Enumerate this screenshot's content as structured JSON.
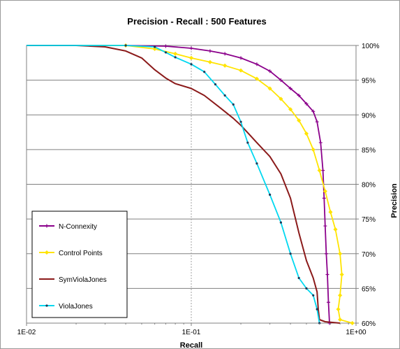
{
  "chart_data": {
    "type": "line",
    "title": "Precision - Recall : 500 Features",
    "xlabel": "Recall",
    "ylabel": "Precision",
    "x_scale": "log",
    "xlim": [
      0.01,
      1.0
    ],
    "ylim": [
      60,
      100
    ],
    "x_ticks": [
      {
        "value": 0.01,
        "label": "1E-02"
      },
      {
        "value": 0.1,
        "label": "1E-01"
      },
      {
        "value": 1.0,
        "label": "1E+00"
      }
    ],
    "y_ticks": [
      {
        "value": 100,
        "label": "100%"
      },
      {
        "value": 95,
        "label": "95%"
      },
      {
        "value": 90,
        "label": "90%"
      },
      {
        "value": 85,
        "label": "85%"
      },
      {
        "value": 80,
        "label": "80%"
      },
      {
        "value": 75,
        "label": "75%"
      },
      {
        "value": 70,
        "label": "70%"
      },
      {
        "value": 65,
        "label": "65%"
      },
      {
        "value": 60,
        "label": "60%"
      }
    ],
    "grid": true,
    "legend_position": "bottom-left",
    "series": [
      {
        "name": "N-Connexity",
        "color": "#8B008B",
        "marker": "plus",
        "points": [
          [
            0.01,
            100
          ],
          [
            0.04,
            100
          ],
          [
            0.07,
            99.9
          ],
          [
            0.1,
            99.6
          ],
          [
            0.13,
            99.2
          ],
          [
            0.16,
            98.8
          ],
          [
            0.2,
            98.2
          ],
          [
            0.25,
            97.3
          ],
          [
            0.3,
            96.3
          ],
          [
            0.35,
            95.0
          ],
          [
            0.4,
            93.8
          ],
          [
            0.45,
            92.8
          ],
          [
            0.5,
            91.6
          ],
          [
            0.55,
            90.5
          ],
          [
            0.58,
            89.0
          ],
          [
            0.61,
            86.0
          ],
          [
            0.63,
            82.0
          ],
          [
            0.64,
            78.0
          ],
          [
            0.65,
            74.0
          ],
          [
            0.66,
            70.0
          ],
          [
            0.67,
            67.0
          ],
          [
            0.68,
            63.0
          ],
          [
            0.69,
            60.0
          ]
        ]
      },
      {
        "name": "Control Points",
        "color": "#FFE400",
        "marker": "diamond",
        "points": [
          [
            0.01,
            100
          ],
          [
            0.04,
            100
          ],
          [
            0.06,
            99.5
          ],
          [
            0.08,
            98.8
          ],
          [
            0.1,
            98.2
          ],
          [
            0.13,
            97.6
          ],
          [
            0.16,
            97.1
          ],
          [
            0.2,
            96.4
          ],
          [
            0.25,
            95.2
          ],
          [
            0.3,
            93.8
          ],
          [
            0.35,
            92.3
          ],
          [
            0.4,
            90.8
          ],
          [
            0.45,
            89.2
          ],
          [
            0.5,
            87.3
          ],
          [
            0.55,
            85.0
          ],
          [
            0.6,
            82.0
          ],
          [
            0.65,
            79.0
          ],
          [
            0.7,
            76.0
          ],
          [
            0.75,
            73.5
          ],
          [
            0.8,
            70.0
          ],
          [
            0.82,
            67.0
          ],
          [
            0.8,
            64.0
          ],
          [
            0.78,
            62.0
          ],
          [
            0.8,
            60.5
          ],
          [
            0.95,
            60.0
          ]
        ]
      },
      {
        "name": "SymViolaJones",
        "color": "#8B1A1A",
        "marker": "none",
        "points": [
          [
            0.01,
            100
          ],
          [
            0.02,
            100
          ],
          [
            0.03,
            99.8
          ],
          [
            0.04,
            99.2
          ],
          [
            0.05,
            98.2
          ],
          [
            0.06,
            96.5
          ],
          [
            0.07,
            95.3
          ],
          [
            0.08,
            94.5
          ],
          [
            0.1,
            93.8
          ],
          [
            0.12,
            92.8
          ],
          [
            0.15,
            91.0
          ],
          [
            0.18,
            89.5
          ],
          [
            0.2,
            88.5
          ],
          [
            0.25,
            86.0
          ],
          [
            0.3,
            84.0
          ],
          [
            0.35,
            81.5
          ],
          [
            0.4,
            78.0
          ],
          [
            0.45,
            73.0
          ],
          [
            0.5,
            69.0
          ],
          [
            0.55,
            66.5
          ],
          [
            0.58,
            64.5
          ],
          [
            0.59,
            62.0
          ],
          [
            0.6,
            60.5
          ],
          [
            0.65,
            60.2
          ],
          [
            0.8,
            60.0
          ]
        ]
      },
      {
        "name": "ViolaJones",
        "color": "#00D8F0",
        "marker": "dot",
        "points": [
          [
            0.01,
            100
          ],
          [
            0.04,
            100
          ],
          [
            0.06,
            99.8
          ],
          [
            0.07,
            99.0
          ],
          [
            0.08,
            98.3
          ],
          [
            0.1,
            97.3
          ],
          [
            0.12,
            96.2
          ],
          [
            0.14,
            94.4
          ],
          [
            0.16,
            92.8
          ],
          [
            0.18,
            91.5
          ],
          [
            0.2,
            89.0
          ],
          [
            0.22,
            86.0
          ],
          [
            0.25,
            83.0
          ],
          [
            0.3,
            78.5
          ],
          [
            0.35,
            74.5
          ],
          [
            0.4,
            70.0
          ],
          [
            0.45,
            66.5
          ],
          [
            0.5,
            65.0
          ],
          [
            0.55,
            64.0
          ],
          [
            0.58,
            62.0
          ],
          [
            0.6,
            60.0
          ]
        ]
      }
    ]
  }
}
